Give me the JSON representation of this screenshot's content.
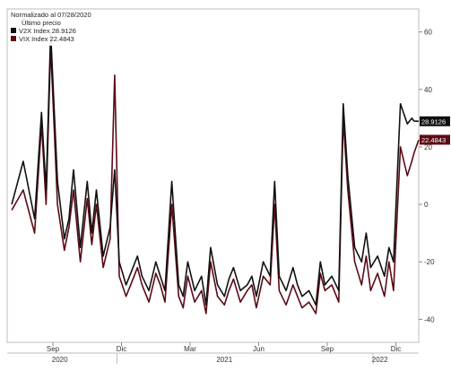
{
  "chart_data": {
    "type": "line",
    "legend": {
      "header": "Normalizado al 07/28/2020",
      "subheader": "Último precio",
      "placement": "top-left"
    },
    "y_axis": {
      "side": "right",
      "ylim": [
        -48,
        68
      ],
      "ticks": [
        -40,
        -20,
        0,
        20,
        40,
        60
      ],
      "grid": false
    },
    "x_axis": {
      "month_ticks": [
        "Sep",
        "Dic",
        "Mar",
        "Jun",
        "Sep",
        "Dic"
      ],
      "year_labels": [
        "2020",
        "2021",
        "2022"
      ]
    },
    "x_month_index": [
      0,
      0.5,
      1,
      1.3,
      1.5,
      1.7,
      2,
      2.3,
      2.5,
      2.7,
      3,
      3.3,
      3.5,
      3.7,
      4,
      4.3,
      4.5,
      4.7,
      5,
      5.3,
      5.5,
      5.7,
      6,
      6.3,
      6.5,
      6.7,
      7,
      7.3,
      7.5,
      7.7,
      8,
      8.3,
      8.5,
      8.7,
      9,
      9.3,
      9.5,
      9.7,
      10,
      10.3,
      10.5,
      10.7,
      11,
      11.3,
      11.5,
      11.7,
      12,
      12.3,
      12.5,
      12.7,
      13,
      13.3,
      13.5,
      13.7,
      14,
      14.3,
      14.5,
      14.7,
      15,
      15.3,
      15.5,
      15.7,
      16,
      16.3,
      16.5,
      16.7,
      17,
      17.3,
      17.5,
      17.6,
      17.8
    ],
    "series": [
      {
        "name": "V2X Index",
        "last_value": "28.9126",
        "color": "#111111",
        "values": [
          0,
          15,
          -5,
          32,
          5,
          60,
          8,
          -12,
          -5,
          12,
          -15,
          8,
          -10,
          5,
          -18,
          -8,
          12,
          -20,
          -28,
          -22,
          -18,
          -25,
          -30,
          -20,
          -25,
          -30,
          8,
          -28,
          -32,
          -20,
          -30,
          -25,
          -35,
          -15,
          -28,
          -32,
          -26,
          -22,
          -30,
          -28,
          -25,
          -32,
          -20,
          -25,
          8,
          -25,
          -30,
          -22,
          -28,
          -32,
          -30,
          -35,
          -20,
          -28,
          -25,
          -30,
          35,
          10,
          -15,
          -20,
          -10,
          -22,
          -18,
          -25,
          -15,
          -20,
          35,
          28,
          30,
          29,
          28.9126
        ]
      },
      {
        "name": "VIX Index",
        "last_value": "22.4843",
        "color": "#5c0a14",
        "values": [
          -2,
          5,
          -10,
          28,
          0,
          55,
          0,
          -16,
          -8,
          5,
          -20,
          2,
          -14,
          0,
          -22,
          -12,
          45,
          -25,
          -32,
          -26,
          -22,
          -28,
          -34,
          -24,
          -28,
          -34,
          0,
          -32,
          -36,
          -25,
          -34,
          -30,
          -38,
          -20,
          -32,
          -35,
          -30,
          -26,
          -34,
          -30,
          -28,
          -36,
          -25,
          -28,
          0,
          -30,
          -35,
          -28,
          -32,
          -36,
          -34,
          -38,
          -24,
          -30,
          -28,
          -34,
          30,
          5,
          -20,
          -28,
          -18,
          -30,
          -24,
          -32,
          -20,
          -30,
          20,
          10,
          15,
          18,
          22.4843
        ]
      }
    ]
  }
}
